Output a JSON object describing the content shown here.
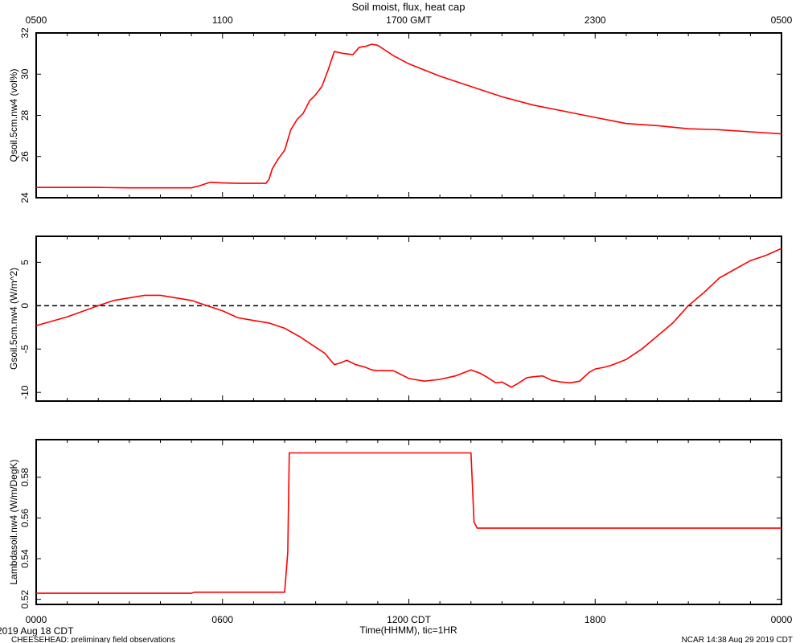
{
  "figure": {
    "title": "Soil moist, flux, heat cap",
    "top_axis_labels": [
      "0500",
      "1100",
      "1700 GMT",
      "2300",
      "0500"
    ],
    "bottom_axis_labels": [
      "0000",
      "0600",
      "1200 CDT",
      "1800",
      "0000"
    ],
    "xlabel": "Time(HHMM), tic=1HR",
    "date_label": "2019 Aug 18 CDT",
    "footer_left": "CHEESEHEAD: preliminary field observations",
    "footer_right": "NCAR 14:38 Aug 29 2019 CDT"
  },
  "chart_data": [
    {
      "type": "line",
      "ylabel": "Qsoil.5cm.nw4 (vol%)",
      "xlim": [
        0,
        24
      ],
      "ylim": [
        24,
        32
      ],
      "yticks": [
        24,
        26,
        28,
        30,
        32
      ],
      "color": "#ff0000",
      "series": [
        {
          "x": [
            0,
            1,
            2,
            3,
            4,
            5,
            5.2,
            5.6,
            6,
            6.5,
            7,
            7.4,
            7.5,
            7.6,
            7.8,
            8,
            8.2,
            8.4,
            8.6,
            8.8,
            9,
            9.2,
            9.4,
            9.6,
            9.9,
            10.2,
            10.4,
            10.6,
            10.8,
            11,
            11.2,
            11.5,
            12,
            12.5,
            13,
            14,
            15,
            16,
            17,
            18,
            19,
            20,
            21,
            22,
            23,
            24
          ],
          "y": [
            24.5,
            24.5,
            24.5,
            24.48,
            24.48,
            24.48,
            24.55,
            24.75,
            24.72,
            24.7,
            24.7,
            24.7,
            24.9,
            25.4,
            25.9,
            26.3,
            27.3,
            27.8,
            28.1,
            28.7,
            29.0,
            29.4,
            30.2,
            31.1,
            31.0,
            30.95,
            31.3,
            31.35,
            31.45,
            31.4,
            31.2,
            30.9,
            30.5,
            30.2,
            29.9,
            29.4,
            28.9,
            28.5,
            28.2,
            27.9,
            27.6,
            27.5,
            27.35,
            27.3,
            27.2,
            27.1
          ]
        }
      ]
    },
    {
      "type": "line",
      "ylabel": "Gsoil.5cm.nw4 (W/m^2)",
      "xlim": [
        0,
        24
      ],
      "ylim": [
        -11,
        8
      ],
      "yticks": [
        -10,
        -5,
        0,
        5
      ],
      "reference_line": 0,
      "color": "#ff0000",
      "series": [
        {
          "x": [
            0,
            1,
            2,
            2.5,
            3,
            3.5,
            4,
            5,
            5.5,
            6,
            6.5,
            7,
            7.5,
            8,
            8.5,
            9,
            9.3,
            9.6,
            9.8,
            10,
            10.3,
            10.6,
            10.8,
            11,
            11.5,
            12,
            12.5,
            13,
            13.5,
            14,
            14.3,
            14.5,
            14.8,
            15,
            15.3,
            15.5,
            15.8,
            16,
            16.3,
            16.6,
            16.9,
            17.2,
            17.5,
            17.8,
            18,
            18.3,
            18.5,
            19,
            19.5,
            20,
            20.5,
            21,
            21.5,
            22,
            22.5,
            23,
            23.5,
            24
          ],
          "y": [
            -2.3,
            -1.3,
            0,
            0.6,
            0.9,
            1.2,
            1.2,
            0.6,
            0,
            -0.6,
            -1.4,
            -1.7,
            -2,
            -2.6,
            -3.6,
            -4.8,
            -5.5,
            -6.8,
            -6.6,
            -6.3,
            -6.8,
            -7.1,
            -7.4,
            -7.5,
            -7.5,
            -8.4,
            -8.7,
            -8.5,
            -8.1,
            -7.4,
            -7.8,
            -8.2,
            -8.9,
            -8.8,
            -9.4,
            -9.0,
            -8.3,
            -8.2,
            -8.1,
            -8.6,
            -8.8,
            -8.9,
            -8.7,
            -7.7,
            -7.3,
            -7.1,
            -6.9,
            -6.2,
            -5,
            -3.5,
            -2,
            0,
            1.5,
            3.2,
            4.2,
            5.2,
            5.8,
            6.6
          ]
        }
      ]
    },
    {
      "type": "line",
      "ylabel": "Lambdasoil.nw4 (W/m/DegK)",
      "xlim": [
        0,
        24
      ],
      "ylim": [
        0.5175,
        0.5985
      ],
      "yticks": [
        0.52,
        0.54,
        0.56,
        0.58
      ],
      "color": "#ff0000",
      "series": [
        {
          "x": [
            0,
            5,
            5.1,
            8,
            8.1,
            8.15,
            8.3,
            14,
            14.1,
            14.2,
            24
          ],
          "y": [
            0.523,
            0.523,
            0.5235,
            0.5235,
            0.543,
            0.592,
            0.592,
            0.592,
            0.558,
            0.555,
            0.555
          ]
        }
      ]
    }
  ]
}
